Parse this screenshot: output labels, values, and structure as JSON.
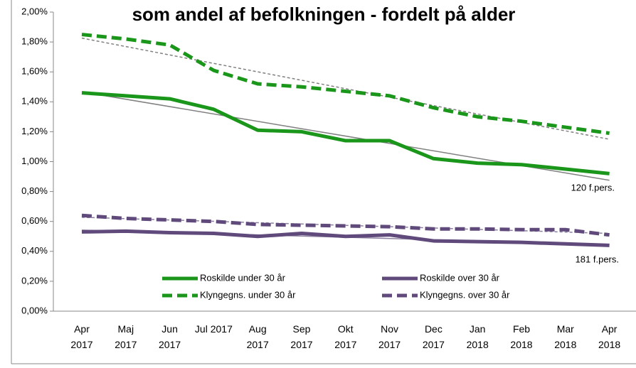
{
  "chart_data": {
    "type": "line",
    "title": "som andel af befolkningen - fordelt på alder",
    "categories": [
      "Apr\n2017",
      "Maj\n2017",
      "Jun\n2017",
      "Jul 2017",
      "Aug\n2017",
      "Sep\n2017",
      "Okt\n2017",
      "Nov\n2017",
      "Dec\n2017",
      "Jan\n2018",
      "Feb\n2018",
      "Mar\n2018",
      "Apr\n2018"
    ],
    "series": [
      {
        "name": "Roskilde under 30 år",
        "color": "#1a961a",
        "dash": false,
        "trend_color": "#808080",
        "values": [
          1.46,
          1.44,
          1.42,
          1.35,
          1.21,
          1.2,
          1.14,
          1.14,
          1.02,
          0.99,
          0.98,
          0.95,
          0.92
        ]
      },
      {
        "name": "Roskilde over 30 år",
        "color": "#604a7b",
        "dash": false,
        "trend_color": "#8c80a0",
        "values": [
          0.53,
          0.535,
          0.525,
          0.52,
          0.5,
          0.52,
          0.5,
          0.51,
          0.47,
          0.465,
          0.46,
          0.45,
          0.44
        ]
      },
      {
        "name": "Klyngegns. under 30 år",
        "color": "#1a961a",
        "dash": true,
        "trend_color": "#808080",
        "values": [
          1.85,
          1.82,
          1.78,
          1.61,
          1.52,
          1.5,
          1.47,
          1.44,
          1.36,
          1.3,
          1.27,
          1.23,
          1.19
        ]
      },
      {
        "name": "Klyngegns. over 30 år",
        "color": "#604a7b",
        "dash": true,
        "trend_color": "#8c80a0",
        "values": [
          0.64,
          0.62,
          0.61,
          0.6,
          0.58,
          0.575,
          0.57,
          0.565,
          0.55,
          0.55,
          0.545,
          0.545,
          0.51
        ]
      }
    ],
    "trendline": true,
    "ylim": [
      0,
      2
    ],
    "yticks": [
      {
        "value": 0,
        "label": "0,00%"
      },
      {
        "value": 0.2,
        "label": "0,20%"
      },
      {
        "value": 0.4,
        "label": "0,40%"
      },
      {
        "value": 0.6,
        "label": "0,60%"
      },
      {
        "value": 0.8,
        "label": "0,80%"
      },
      {
        "value": 1.0,
        "label": "1,00%"
      },
      {
        "value": 1.2,
        "label": "1,20%"
      },
      {
        "value": 1.4,
        "label": "1,40%"
      },
      {
        "value": 1.6,
        "label": "1,60%"
      },
      {
        "value": 1.8,
        "label": "1,80%"
      },
      {
        "value": 2.0,
        "label": "2,00%"
      }
    ],
    "annotations": [
      "120 f.pers.",
      "181 f.pers."
    ]
  }
}
